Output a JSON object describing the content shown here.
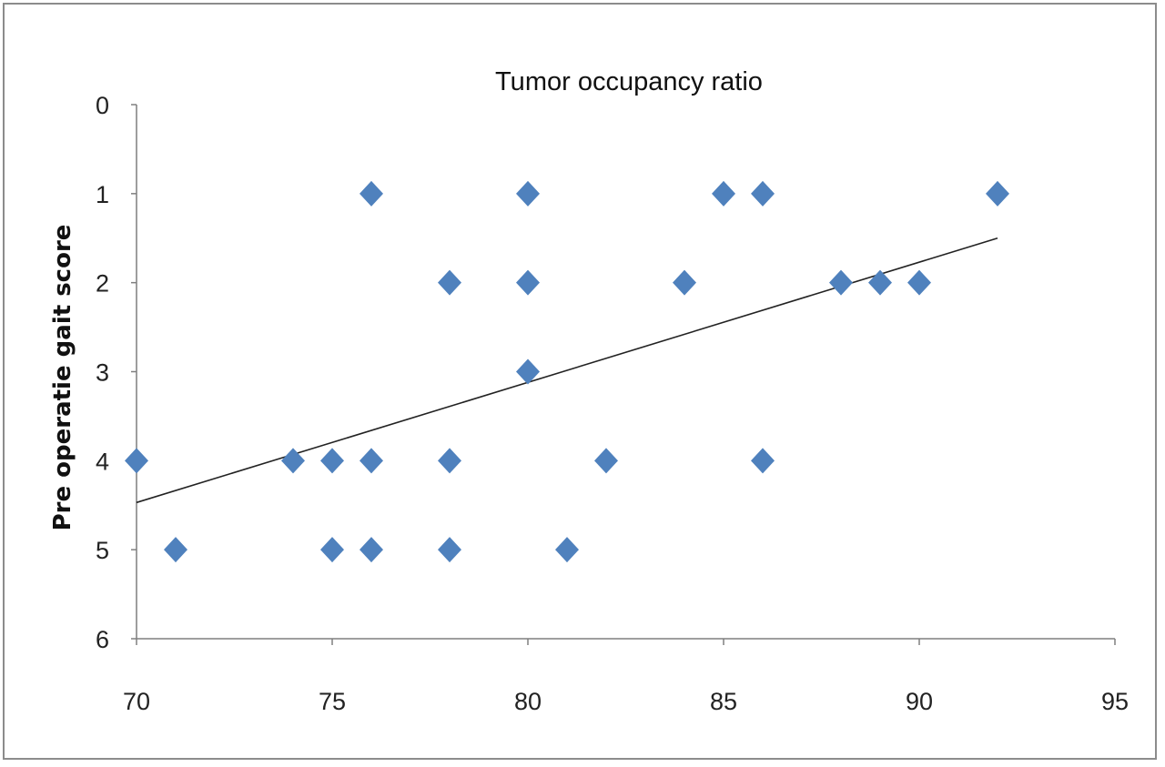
{
  "chart_data": {
    "type": "scatter",
    "title": "Tumor occupancy ratio",
    "xlabel": "",
    "ylabel": "Pre operatie gait  score",
    "xlim": [
      70,
      95
    ],
    "ylim": [
      0,
      6
    ],
    "y_reversed": true,
    "x_ticks": [
      70,
      75,
      80,
      85,
      90,
      95
    ],
    "y_ticks": [
      0,
      1,
      2,
      3,
      4,
      5,
      6
    ],
    "grid": false,
    "legend": "none",
    "marker": "diamond",
    "marker_color": "#4f81bd",
    "trendline": {
      "type": "linear",
      "x": [
        70,
        92
      ],
      "y": [
        4.47,
        1.5
      ],
      "color": "#222222"
    },
    "points": [
      {
        "x": 70,
        "y": 4
      },
      {
        "x": 71,
        "y": 5
      },
      {
        "x": 74,
        "y": 4
      },
      {
        "x": 75,
        "y": 4
      },
      {
        "x": 75,
        "y": 5
      },
      {
        "x": 76,
        "y": 1
      },
      {
        "x": 76,
        "y": 4
      },
      {
        "x": 76,
        "y": 5
      },
      {
        "x": 78,
        "y": 2
      },
      {
        "x": 78,
        "y": 4
      },
      {
        "x": 78,
        "y": 5
      },
      {
        "x": 80,
        "y": 1
      },
      {
        "x": 80,
        "y": 2
      },
      {
        "x": 80,
        "y": 3
      },
      {
        "x": 81,
        "y": 5
      },
      {
        "x": 82,
        "y": 4
      },
      {
        "x": 84,
        "y": 2
      },
      {
        "x": 85,
        "y": 1
      },
      {
        "x": 86,
        "y": 1
      },
      {
        "x": 86,
        "y": 4
      },
      {
        "x": 88,
        "y": 2
      },
      {
        "x": 89,
        "y": 2
      },
      {
        "x": 90,
        "y": 2
      },
      {
        "x": 92,
        "y": 1
      }
    ]
  }
}
